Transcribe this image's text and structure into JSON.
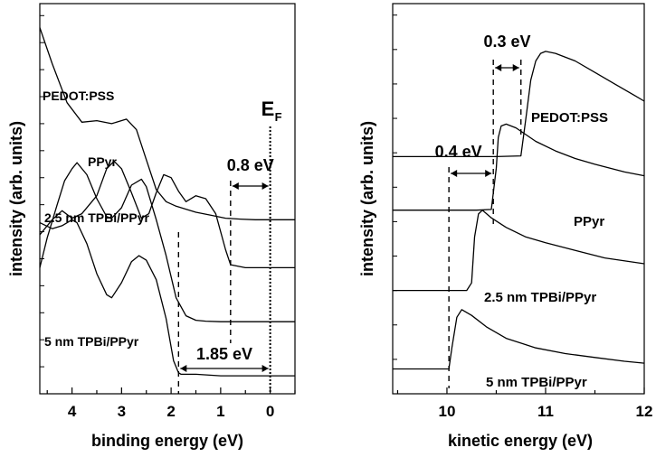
{
  "chart_data": [
    {
      "type": "line",
      "panel": "left",
      "xlabel": "binding energy (eV)",
      "ylabel": "intensity (arb. units)",
      "xlim": [
        4.65,
        -0.5
      ],
      "x_reversed": true,
      "xticks": [
        4,
        3,
        2,
        1,
        0
      ],
      "grid": false,
      "series": [
        {
          "name": "PEDOT:PSS",
          "x": [
            4.65,
            4.4,
            4.1,
            3.8,
            3.5,
            3.2,
            2.9,
            2.7,
            2.5,
            2.3,
            2.1,
            1.9,
            1.7,
            1.5,
            1.2,
            0.9,
            0.6,
            0.3,
            0.0,
            -0.5
          ],
          "y": [
            10.2,
            9.0,
            7.7,
            7.05,
            7.1,
            7.0,
            7.15,
            6.8,
            5.8,
            4.8,
            4.4,
            4.25,
            4.15,
            4.05,
            3.95,
            3.85,
            3.82,
            3.8,
            3.8,
            3.8
          ]
        },
        {
          "name": "PPyr",
          "x": [
            4.65,
            4.4,
            4.2,
            4.0,
            3.8,
            3.5,
            3.3,
            3.15,
            3.0,
            2.8,
            2.6,
            2.45,
            2.3,
            2.15,
            2.0,
            1.85,
            1.7,
            1.5,
            1.3,
            1.1,
            0.9,
            0.8,
            0.5,
            0.2,
            0.0,
            -0.5
          ],
          "y": [
            3.3,
            3.8,
            4.1,
            3.85,
            4.0,
            4.6,
            5.5,
            5.75,
            5.5,
            4.7,
            3.85,
            4.0,
            4.7,
            5.3,
            5.2,
            4.75,
            4.4,
            4.6,
            4.5,
            4.0,
            2.8,
            2.3,
            2.2,
            2.2,
            2.2,
            2.2
          ]
        },
        {
          "name": "2.5 nm TPBi/PPyr",
          "x": [
            4.65,
            4.5,
            4.3,
            4.15,
            4.0,
            3.9,
            3.7,
            3.5,
            3.3,
            3.2,
            3.0,
            2.8,
            2.6,
            2.5,
            2.3,
            2.1,
            1.9,
            1.7,
            1.5,
            1.3,
            1.0,
            0.7,
            0.4,
            0.0,
            -0.5
          ],
          "y": [
            2.2,
            3.2,
            4.3,
            5.1,
            5.5,
            5.7,
            5.3,
            4.5,
            3.9,
            3.85,
            4.2,
            4.95,
            5.15,
            4.9,
            3.8,
            2.6,
            1.2,
            0.6,
            0.45,
            0.42,
            0.4,
            0.4,
            0.4,
            0.4,
            0.4
          ]
        },
        {
          "name": "5 nm TPBi/PPyr",
          "x": [
            4.65,
            4.4,
            4.2,
            4.0,
            3.9,
            3.7,
            3.5,
            3.3,
            3.2,
            3.0,
            2.8,
            2.65,
            2.5,
            2.3,
            2.1,
            1.95,
            1.85,
            1.8,
            1.5,
            1.0,
            0.5,
            0.0,
            -0.5
          ],
          "y": [
            3.7,
            3.5,
            3.6,
            3.8,
            3.7,
            3.0,
            2.0,
            1.3,
            1.2,
            1.7,
            2.4,
            2.6,
            2.45,
            1.8,
            0.5,
            -0.9,
            -1.3,
            -1.35,
            -1.35,
            -1.4,
            -1.4,
            -1.4,
            -1.4
          ]
        }
      ],
      "annotations": [
        {
          "text": "E",
          "subscript": "F",
          "x": 0.0
        },
        {
          "text": "0.8 eV",
          "from": 0.8,
          "to": 0.0
        },
        {
          "text": "1.85 eV",
          "from": 1.85,
          "to": 0.0
        }
      ]
    },
    {
      "type": "line",
      "panel": "right",
      "xlabel": "kinetic energy (eV)",
      "ylabel": "intensity (arb. units)",
      "xlim": [
        9.45,
        12.0
      ],
      "xticks": [
        10,
        11,
        12
      ],
      "grid": false,
      "series": [
        {
          "name": "PEDOT:PSS",
          "x": [
            9.45,
            10.5,
            10.75,
            10.8,
            10.85,
            10.9,
            10.95,
            11.0,
            11.1,
            11.3,
            11.5,
            11.7,
            11.9,
            12.0
          ],
          "y": [
            3.6,
            3.6,
            3.62,
            4.6,
            5.6,
            6.1,
            6.3,
            6.35,
            6.3,
            6.1,
            5.8,
            5.5,
            5.2,
            5.05
          ]
        },
        {
          "name": "PPyr",
          "x": [
            9.45,
            10.3,
            10.45,
            10.5,
            10.52,
            10.55,
            10.6,
            10.7,
            10.9,
            11.1,
            11.3,
            11.5,
            11.8,
            12.0
          ],
          "y": [
            2.2,
            2.2,
            2.22,
            3.3,
            4.1,
            4.4,
            4.45,
            4.35,
            4.0,
            3.75,
            3.55,
            3.4,
            3.2,
            3.1
          ]
        },
        {
          "name": "2.5 nm TPBi/PPyr",
          "x": [
            9.45,
            10.2,
            10.25,
            10.28,
            10.32,
            10.36,
            10.45,
            10.6,
            10.8,
            11.0,
            11.3,
            11.6,
            12.0
          ],
          "y": [
            0.1,
            0.1,
            0.3,
            1.5,
            2.1,
            2.2,
            2.0,
            1.75,
            1.5,
            1.35,
            1.15,
            0.95,
            0.8
          ]
        },
        {
          "name": "5 nm TPBi/PPyr",
          "x": [
            9.45,
            10.02,
            10.05,
            10.1,
            10.15,
            10.25,
            10.4,
            10.6,
            10.9,
            11.2,
            11.5,
            11.8,
            12.0
          ],
          "y": [
            -1.95,
            -1.95,
            -1.4,
            -0.6,
            -0.4,
            -0.55,
            -0.85,
            -1.15,
            -1.4,
            -1.55,
            -1.65,
            -1.75,
            -1.8
          ]
        }
      ],
      "annotations": [
        {
          "text": "0.3 eV",
          "from": 10.47,
          "to": 10.75
        },
        {
          "text": "0.4 eV",
          "from": 10.02,
          "to": 10.47
        }
      ]
    }
  ]
}
